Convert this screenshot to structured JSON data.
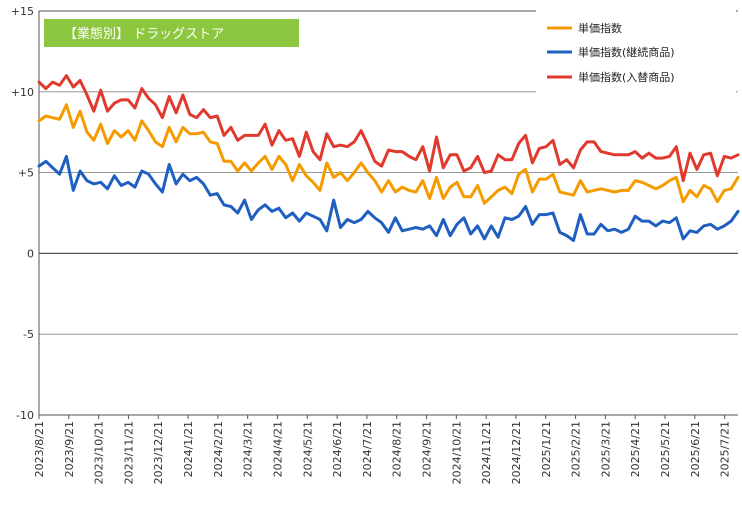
{
  "chart_data": {
    "type": "line",
    "title": "【業態別】 ドラッグストア",
    "xlabel": "",
    "ylabel": "",
    "ylim": [
      -10,
      15
    ],
    "y_ticks": [
      {
        "value": 15,
        "label": "+15"
      },
      {
        "value": 10,
        "label": "+10"
      },
      {
        "value": 5,
        "label": "+5"
      },
      {
        "value": 0,
        "label": "0"
      },
      {
        "value": -5,
        "label": "-5"
      },
      {
        "value": -10,
        "label": "-10"
      }
    ],
    "grid": true,
    "legend_position": "top-right",
    "title_box_color": "#8DC63F",
    "x_tick_labels": [
      "2023/8/21",
      "2023/9/21",
      "2023/10/21",
      "2023/11/21",
      "2023/12/21",
      "2024/1/21",
      "2024/2/21",
      "2024/3/21",
      "2024/4/21",
      "2024/5/21",
      "2024/6/21",
      "2024/7/21",
      "2024/8/21",
      "2024/9/21",
      "2024/10/21",
      "2024/11/21",
      "2024/12/21",
      "2025/1/21",
      "2025/2/21",
      "2025/3/21",
      "2025/4/21",
      "2025/5/21",
      "2025/6/21",
      "2025/7/21"
    ],
    "points_per_month": 4.35,
    "series": [
      {
        "name": "単価指数",
        "color": "#F59B00",
        "values": [
          8.2,
          8.5,
          8.4,
          8.3,
          9.2,
          7.8,
          8.8,
          7.5,
          7.0,
          8.0,
          6.8,
          7.6,
          7.2,
          7.6,
          7.0,
          8.2,
          7.6,
          6.9,
          6.6,
          7.8,
          6.9,
          7.8,
          7.4,
          7.4,
          7.5,
          6.9,
          6.8,
          5.7,
          5.7,
          5.1,
          5.6,
          5.1,
          5.6,
          6.0,
          5.2,
          6.0,
          5.5,
          4.5,
          5.5,
          4.8,
          4.4,
          3.9,
          5.6,
          4.7,
          5.0,
          4.5,
          5.0,
          5.6,
          5.0,
          4.5,
          3.8,
          4.5,
          3.8,
          4.1,
          3.9,
          3.8,
          4.5,
          3.4,
          4.7,
          3.4,
          4.1,
          4.4,
          3.5,
          3.5,
          4.2,
          3.1,
          3.5,
          3.9,
          4.1,
          3.7,
          4.9,
          5.2,
          3.8,
          4.6,
          4.6,
          4.9,
          3.8,
          3.7,
          3.6,
          4.5,
          3.8,
          3.9,
          4.0,
          3.9,
          3.8,
          3.9,
          3.9,
          4.5,
          4.4,
          4.2,
          4.0,
          4.2,
          4.5,
          4.7,
          3.2,
          3.9,
          3.5,
          4.2,
          4.0,
          3.2,
          3.9,
          4.0,
          4.7
        ]
      },
      {
        "name": "単価指数(継続商品)",
        "color": "#1F5FC0",
        "values": [
          5.4,
          5.7,
          5.3,
          4.9,
          6.0,
          3.9,
          5.1,
          4.5,
          4.3,
          4.4,
          4.0,
          4.8,
          4.2,
          4.4,
          4.1,
          5.1,
          4.9,
          4.3,
          3.8,
          5.5,
          4.3,
          4.9,
          4.5,
          4.7,
          4.3,
          3.6,
          3.7,
          3.0,
          2.9,
          2.5,
          3.3,
          2.1,
          2.7,
          3.0,
          2.6,
          2.8,
          2.2,
          2.5,
          2.0,
          2.5,
          2.3,
          2.1,
          1.4,
          3.3,
          1.6,
          2.1,
          1.9,
          2.1,
          2.6,
          2.2,
          1.9,
          1.3,
          2.2,
          1.4,
          1.5,
          1.6,
          1.5,
          1.7,
          1.1,
          2.1,
          1.1,
          1.8,
          2.2,
          1.2,
          1.7,
          0.9,
          1.7,
          1.0,
          2.2,
          2.1,
          2.3,
          2.9,
          1.8,
          2.4,
          2.4,
          2.5,
          1.3,
          1.1,
          0.8,
          2.4,
          1.2,
          1.2,
          1.8,
          1.4,
          1.5,
          1.3,
          1.5,
          2.3,
          2.0,
          2.0,
          1.7,
          2.0,
          1.9,
          2.2,
          0.9,
          1.4,
          1.3,
          1.7,
          1.8,
          1.5,
          1.7,
          2.0,
          2.6
        ]
      },
      {
        "name": "単価指数(入替商品)",
        "color": "#E03A2E",
        "values": [
          10.6,
          10.2,
          10.6,
          10.4,
          11.0,
          10.3,
          10.7,
          9.8,
          8.8,
          10.1,
          8.8,
          9.3,
          9.5,
          9.5,
          9.0,
          10.2,
          9.6,
          9.2,
          8.4,
          9.7,
          8.7,
          9.8,
          8.6,
          8.4,
          8.9,
          8.4,
          8.5,
          7.3,
          7.8,
          7.0,
          7.3,
          7.3,
          7.3,
          8.0,
          6.7,
          7.6,
          7.0,
          7.1,
          6.0,
          7.5,
          6.3,
          5.8,
          7.4,
          6.6,
          6.7,
          6.6,
          6.9,
          7.6,
          6.7,
          5.7,
          5.4,
          6.4,
          6.3,
          6.3,
          6.0,
          5.8,
          6.6,
          5.1,
          7.2,
          5.3,
          6.1,
          6.1,
          5.1,
          5.3,
          6.0,
          5.0,
          5.1,
          6.1,
          5.8,
          5.8,
          6.8,
          7.3,
          5.6,
          6.5,
          6.6,
          7.0,
          5.5,
          5.8,
          5.3,
          6.4,
          6.9,
          6.9,
          6.3,
          6.2,
          6.1,
          6.1,
          6.1,
          6.3,
          5.9,
          6.2,
          5.9,
          5.9,
          6.0,
          6.6,
          4.5,
          6.2,
          5.2,
          6.1,
          6.2,
          4.8,
          6.0,
          5.9,
          6.1
        ]
      }
    ]
  }
}
